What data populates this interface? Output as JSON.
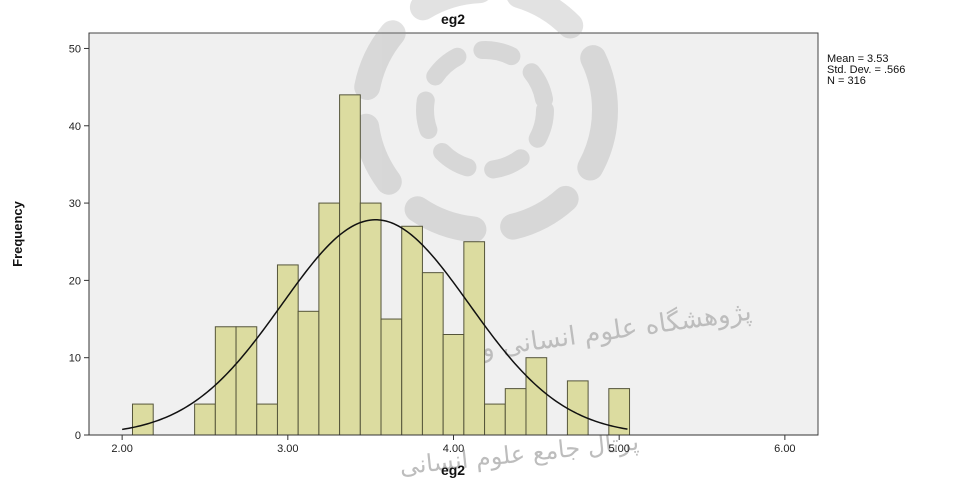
{
  "chart_data": {
    "type": "bar",
    "title": "eg2",
    "xlabel": "eg2",
    "ylabel": "Frequency",
    "xlim": [
      1.8,
      6.2
    ],
    "ylim": [
      0,
      52
    ],
    "x_ticks": [
      {
        "value": 2.0,
        "label": "2.00"
      },
      {
        "value": 3.0,
        "label": "3.00"
      },
      {
        "value": 4.0,
        "label": "4.00"
      },
      {
        "value": 5.0,
        "label": "5.00"
      },
      {
        "value": 6.0,
        "label": "6.00"
      }
    ],
    "y_ticks": [
      {
        "value": 0,
        "label": "0"
      },
      {
        "value": 10,
        "label": "10"
      },
      {
        "value": 20,
        "label": "20"
      },
      {
        "value": 30,
        "label": "30"
      },
      {
        "value": 40,
        "label": "40"
      },
      {
        "value": 50,
        "label": "50"
      }
    ],
    "bin_width": 0.125,
    "bins": [
      {
        "start": 2.0625,
        "count": 4
      },
      {
        "start": 2.4375,
        "count": 4
      },
      {
        "start": 2.5625,
        "count": 14
      },
      {
        "start": 2.6875,
        "count": 14
      },
      {
        "start": 2.8125,
        "count": 4
      },
      {
        "start": 2.9375,
        "count": 22
      },
      {
        "start": 3.0625,
        "count": 16
      },
      {
        "start": 3.1875,
        "count": 30
      },
      {
        "start": 3.3125,
        "count": 44
      },
      {
        "start": 3.4375,
        "count": 30
      },
      {
        "start": 3.5625,
        "count": 15
      },
      {
        "start": 3.6875,
        "count": 27
      },
      {
        "start": 3.8125,
        "count": 21
      },
      {
        "start": 3.9375,
        "count": 13
      },
      {
        "start": 4.0625,
        "count": 25
      },
      {
        "start": 4.1875,
        "count": 4
      },
      {
        "start": 4.3125,
        "count": 6
      },
      {
        "start": 4.4375,
        "count": 10
      },
      {
        "start": 4.6875,
        "count": 7
      },
      {
        "start": 4.9375,
        "count": 6
      }
    ],
    "normal_curve": {
      "mean": 3.53,
      "std_dev": 0.566,
      "n": 316
    },
    "stats_lines": [
      "Mean = 3.53",
      "Std. Dev. = .566",
      "N = 316"
    ],
    "grid": false,
    "legend": "none",
    "colors": {
      "bar_fill": "#dcdca0",
      "bar_stroke": "#55553a",
      "plot_background": "#f0f0f0",
      "curve": "#111111"
    }
  },
  "watermark": {
    "lines": [
      "پژوهشگاه علوم انسانی و مطالعات فرهنگی",
      "پرتال جامع علوم انسانی"
    ]
  }
}
